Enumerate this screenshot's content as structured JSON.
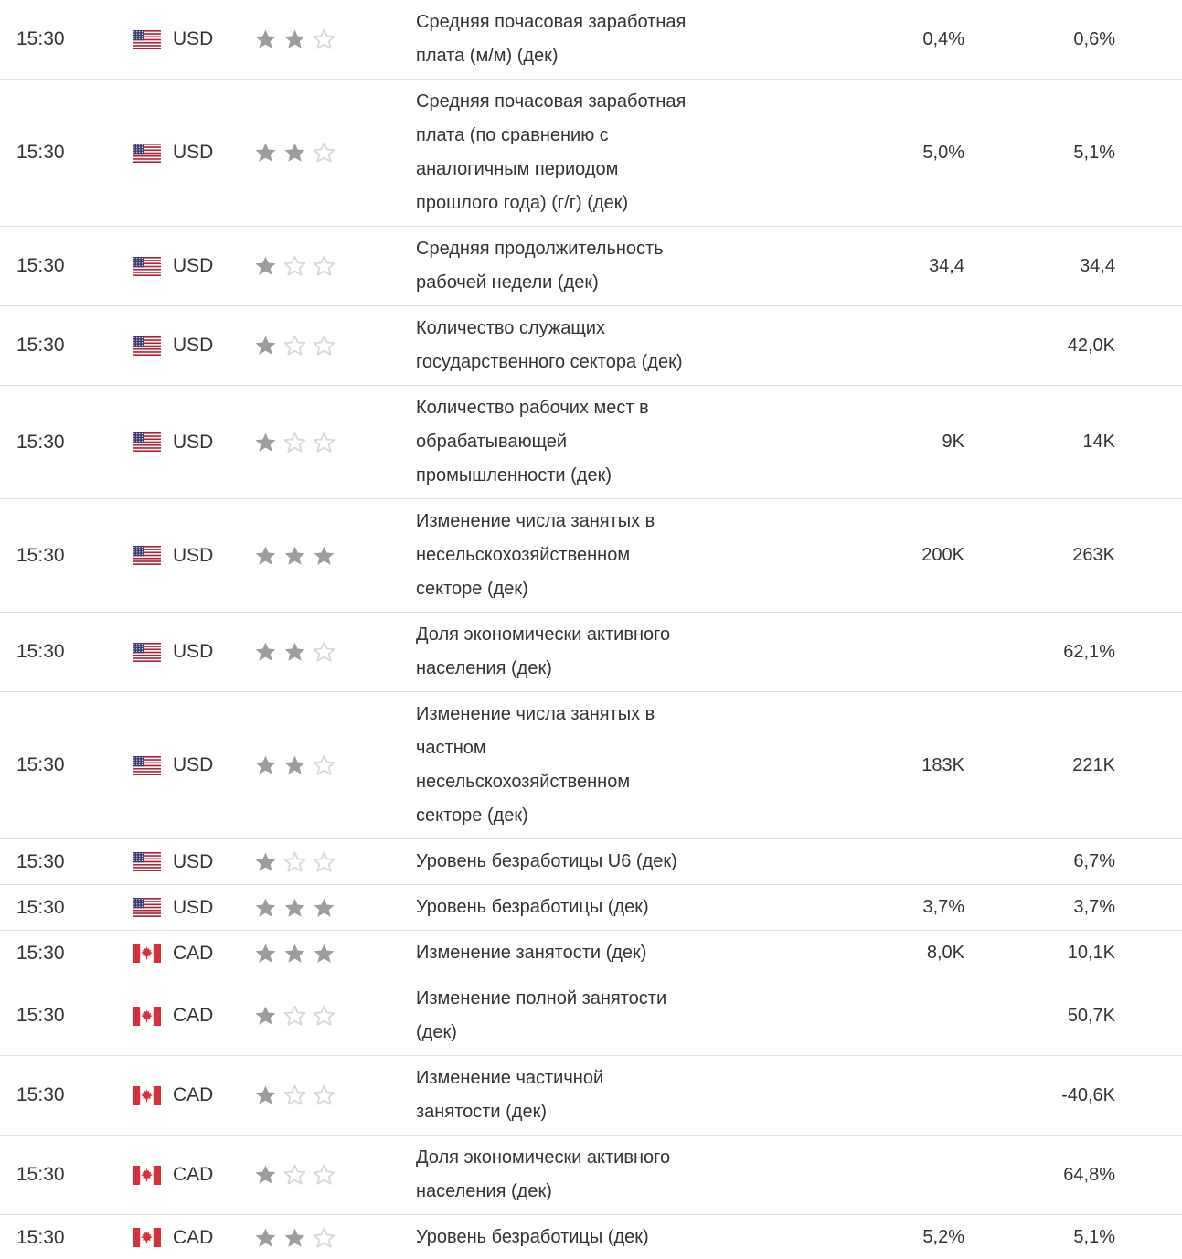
{
  "colors": {
    "text": "#333333",
    "row_border": "#e2e2e2",
    "star_filled": "#9d9d9d",
    "star_empty_stroke": "#d8d8d8",
    "us_flag_red": "#b22234",
    "us_flag_blue": "#3c3b6e",
    "ca_flag_red": "#d5303e"
  },
  "icons": {
    "us_flag": "us-flag-icon",
    "ca_flag": "canada-flag-icon",
    "star_filled": "importance-star-filled-icon",
    "star_empty": "importance-star-empty-icon"
  },
  "calendar": {
    "stars_total": 3,
    "rows": [
      {
        "time": "15:30",
        "currency": "USD",
        "flag": "US",
        "importance": 2,
        "event": "Средняя почасовая заработная\nплата (м/м) (дек)",
        "forecast": "0,4%",
        "previous": "0,6%"
      },
      {
        "time": "15:30",
        "currency": "USD",
        "flag": "US",
        "importance": 2,
        "event": "Средняя почасовая заработная\nплата (по сравнению с\nаналогичным периодом\nпрошлого года) (г/г) (дек)",
        "forecast": "5,0%",
        "previous": "5,1%"
      },
      {
        "time": "15:30",
        "currency": "USD",
        "flag": "US",
        "importance": 1,
        "event": "Средняя продолжительность\nрабочей недели (дек)",
        "forecast": "34,4",
        "previous": "34,4"
      },
      {
        "time": "15:30",
        "currency": "USD",
        "flag": "US",
        "importance": 1,
        "event": "Количество служащих\nгосударственного сектора (дек)",
        "forecast": "",
        "previous": "42,0K"
      },
      {
        "time": "15:30",
        "currency": "USD",
        "flag": "US",
        "importance": 1,
        "event": "Количество рабочих мест в\nобрабатывающей\nпромышленности (дек)",
        "forecast": "9K",
        "previous": "14K"
      },
      {
        "time": "15:30",
        "currency": "USD",
        "flag": "US",
        "importance": 3,
        "event": "Изменение числа занятых в\nнесельскохозяйственном\nсекторе (дек)",
        "forecast": "200K",
        "previous": "263K"
      },
      {
        "time": "15:30",
        "currency": "USD",
        "flag": "US",
        "importance": 2,
        "event": "Доля экономически активного\nнаселения (дек)",
        "forecast": "",
        "previous": "62,1%"
      },
      {
        "time": "15:30",
        "currency": "USD",
        "flag": "US",
        "importance": 2,
        "event": "Изменение числа занятых в\nчастном\nнесельскохозяйственном\nсекторе (дек)",
        "forecast": "183K",
        "previous": "221K"
      },
      {
        "time": "15:30",
        "currency": "USD",
        "flag": "US",
        "importance": 1,
        "event": "Уровень безработицы U6 (дек)",
        "forecast": "",
        "previous": "6,7%"
      },
      {
        "time": "15:30",
        "currency": "USD",
        "flag": "US",
        "importance": 3,
        "event": "Уровень безработицы (дек)",
        "forecast": "3,7%",
        "previous": "3,7%"
      },
      {
        "time": "15:30",
        "currency": "CAD",
        "flag": "CA",
        "importance": 3,
        "event": "Изменение занятости (дек)",
        "forecast": "8,0K",
        "previous": "10,1K"
      },
      {
        "time": "15:30",
        "currency": "CAD",
        "flag": "CA",
        "importance": 1,
        "event": "Изменение полной занятости\n(дек)",
        "forecast": "",
        "previous": "50,7K"
      },
      {
        "time": "15:30",
        "currency": "CAD",
        "flag": "CA",
        "importance": 1,
        "event": "Изменение частичной\nзанятости (дек)",
        "forecast": "",
        "previous": "-40,6K"
      },
      {
        "time": "15:30",
        "currency": "CAD",
        "flag": "CA",
        "importance": 1,
        "event": "Доля экономически активного\nнаселения (дек)",
        "forecast": "",
        "previous": "64,8%"
      },
      {
        "time": "15:30",
        "currency": "CAD",
        "flag": "CA",
        "importance": 2,
        "event": "Уровень безработицы (дек)",
        "forecast": "5,2%",
        "previous": "5,1%"
      }
    ]
  }
}
